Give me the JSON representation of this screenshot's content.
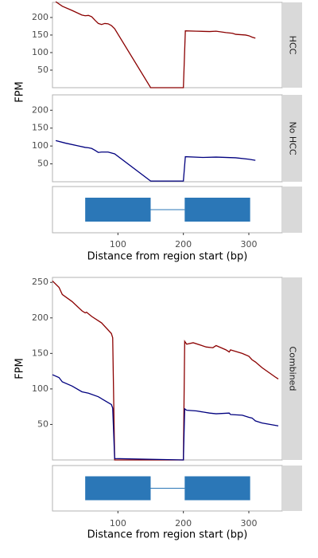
{
  "chart_data": [
    {
      "type": "line",
      "ylabel": "FPM",
      "xlabel": "Distance from region start (bp)",
      "xlim": [
        0,
        351
      ],
      "xticks": [
        100,
        200,
        300
      ],
      "grid": false,
      "panels": [
        {
          "strip": "HCC",
          "ylim": [
            0,
            243
          ],
          "yticks": [
            50,
            100,
            150,
            200
          ],
          "series": [
            {
              "color": "#8b0000",
              "x": [
                5,
                15,
                30,
                45,
                50,
                55,
                60,
                65,
                70,
                75,
                80,
                85,
                90,
                95,
                150,
                200,
                203,
                220,
                240,
                250,
                265,
                275,
                280,
                295,
                300,
                305,
                310
              ],
              "values": [
                245,
                232,
                220,
                207,
                205,
                206,
                202,
                192,
                183,
                180,
                183,
                182,
                177,
                168,
                0,
                0,
                162,
                161,
                160,
                161,
                157,
                155,
                152,
                150,
                148,
                144,
                141
              ]
            }
          ]
        },
        {
          "strip": "No HCC",
          "ylim": [
            0,
            243
          ],
          "yticks": [
            50,
            100,
            150,
            200
          ],
          "series": [
            {
              "color": "#00007f",
              "x": [
                5,
                20,
                40,
                50,
                55,
                60,
                65,
                70,
                75,
                85,
                95,
                150,
                200,
                203,
                230,
                250,
                280,
                300,
                310
              ],
              "values": [
                115,
                108,
                100,
                96,
                95,
                93,
                88,
                82,
                83,
                83,
                78,
                2,
                2,
                70,
                68,
                69,
                67,
                63,
                60
              ]
            }
          ]
        }
      ],
      "exons": [
        {
          "start": 50,
          "end": 150
        },
        {
          "start": 202,
          "end": 302
        }
      ],
      "exon_color": "#2b77b7"
    },
    {
      "type": "line",
      "ylabel": "FPM",
      "xlabel": "Distance from region start (bp)",
      "xlim": [
        0,
        351
      ],
      "xticks": [
        100,
        200,
        300
      ],
      "grid": false,
      "panels": [
        {
          "strip": "Combined",
          "ylim": [
            0,
            257
          ],
          "yticks": [
            50,
            100,
            150,
            200,
            250
          ],
          "series": [
            {
              "color": "#8b0000",
              "x": [
                0,
                10,
                15,
                30,
                45,
                50,
                52,
                60,
                75,
                90,
                92,
                95,
                200,
                202,
                205,
                215,
                235,
                245,
                250,
                265,
                270,
                272,
                290,
                300,
                305,
                310,
                320,
                340,
                345
              ],
              "values": [
                252,
                243,
                233,
                223,
                210,
                207,
                208,
                202,
                193,
                178,
                172,
                0,
                0,
                167,
                163,
                165,
                159,
                158,
                161,
                155,
                152,
                155,
                150,
                146,
                141,
                138,
                130,
                117,
                114
              ]
            },
            {
              "color": "#00007f",
              "x": [
                0,
                10,
                15,
                30,
                45,
                50,
                55,
                70,
                90,
                92,
                95,
                200,
                202,
                205,
                220,
                240,
                250,
                270,
                272,
                290,
                300,
                305,
                310,
                320,
                345
              ],
              "values": [
                120,
                116,
                110,
                104,
                96,
                95,
                94,
                89,
                78,
                73,
                2,
                0,
                72,
                70,
                69,
                66,
                65,
                66,
                64,
                63,
                60,
                59,
                55,
                52,
                48
              ]
            }
          ]
        }
      ],
      "exons": [
        {
          "start": 50,
          "end": 150
        },
        {
          "start": 202,
          "end": 302
        }
      ],
      "exon_color": "#2b77b7"
    }
  ]
}
